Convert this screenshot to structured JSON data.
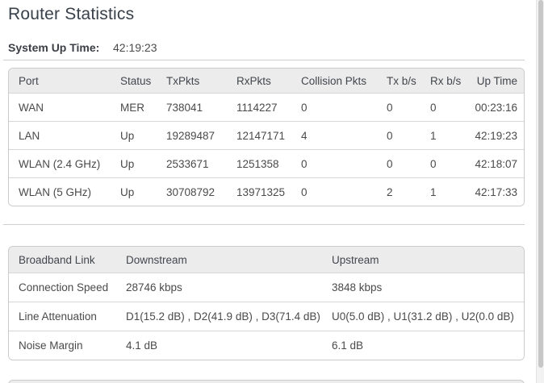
{
  "page": {
    "title": "Router Statistics"
  },
  "system_up_time": {
    "label": "System Up Time:",
    "value": "42:19:23"
  },
  "port_table": {
    "headers": [
      "Port",
      "Status",
      "TxPkts",
      "RxPkts",
      "Collision Pkts",
      "Tx b/s",
      "Rx b/s",
      "Up Time"
    ],
    "rows": [
      [
        "WAN",
        "MER",
        "738041",
        "1114227",
        "0",
        "0",
        "0",
        "00:23:16"
      ],
      [
        "LAN",
        "Up",
        "19289487",
        "12147171",
        "4",
        "0",
        "1",
        "42:19:23"
      ],
      [
        "WLAN (2.4 GHz)",
        "Up",
        "2533671",
        "1251358",
        "0",
        "0",
        "0",
        "42:18:07"
      ],
      [
        "WLAN (5 GHz)",
        "Up",
        "30708792",
        "13971325",
        "0",
        "2",
        "1",
        "42:17:33"
      ]
    ]
  },
  "broadband_table": {
    "headers": [
      "Broadband Link",
      "Downstream",
      "Upstream"
    ],
    "rows": [
      [
        "Connection Speed",
        "28746 kbps",
        "3848 kbps"
      ],
      [
        "Line Attenuation",
        "D1(15.2 dB) , D2(41.9 dB) , D3(71.4 dB)",
        "U0(5.0 dB) , U1(31.2 dB) , U2(0.0 dB)"
      ],
      [
        "Noise Margin",
        "4.1 dB",
        "6.1 dB"
      ]
    ]
  },
  "colors": {
    "title_text": "#39414a",
    "body_text": "#4a4a4a",
    "table_header_bg": "#ececec",
    "table_border": "#cbcbcb"
  }
}
